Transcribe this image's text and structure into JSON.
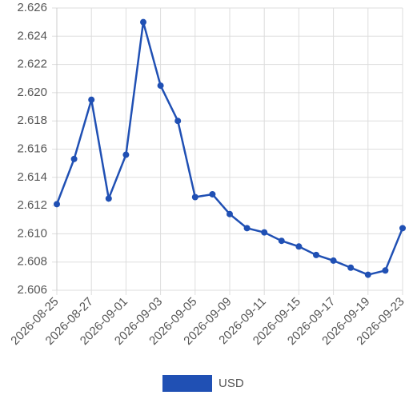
{
  "chart_data": {
    "type": "line",
    "categories": [
      "2026-08-25",
      null,
      "2026-08-27",
      null,
      "2026-09-01",
      null,
      "2026-09-03",
      null,
      "2026-09-05",
      null,
      "2026-09-09",
      null,
      "2026-09-11",
      null,
      "2026-09-15",
      null,
      "2026-09-17",
      null,
      "2026-09-19",
      null,
      "2026-09-23"
    ],
    "series": [
      {
        "name": "USD",
        "color": "#2050b4",
        "values": [
          2.6121,
          2.6153,
          2.6195,
          2.6125,
          2.6156,
          2.625,
          2.6205,
          2.618,
          2.6126,
          2.6128,
          2.6114,
          2.6104,
          2.6101,
          2.6095,
          2.6091,
          2.6085,
          2.6081,
          2.6076,
          2.6071,
          2.6074,
          2.6104
        ]
      }
    ],
    "ylim": [
      2.606,
      2.626
    ],
    "yticks": [
      2.606,
      2.608,
      {
        "value": 2.61,
        "label": "2.610"
      },
      2.612,
      2.614,
      2.616,
      2.618,
      {
        "value": 2.62,
        "label": "2.620"
      },
      2.622,
      2.624,
      2.626
    ],
    "grid": true,
    "legend": "bottom"
  }
}
